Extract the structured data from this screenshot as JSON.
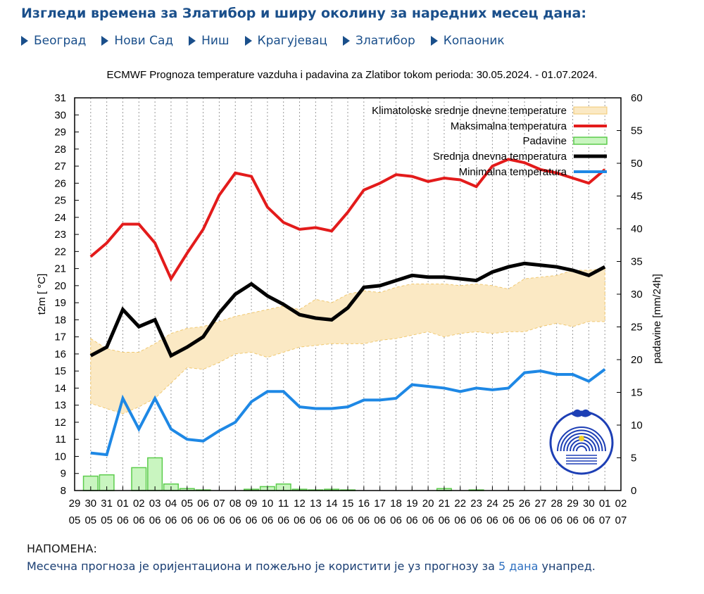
{
  "page": {
    "title": "Изгледи времена за Златибор и ширу околину за наредних месец дана:",
    "cities": [
      "Београд",
      "Нови Сад",
      "Ниш",
      "Крагујевац",
      "Златибор",
      "Копаоник"
    ],
    "note_heading": "НАПОМЕНА:",
    "note_text_before": "Месечна прогноза је оријентациона и пожељно је користити је уз прогнозу за ",
    "note_link": "5 дана",
    "note_text_after": " унапред."
  },
  "colors": {
    "header_blue": "#1a4f8b",
    "max_temp": "#e31b1b",
    "mean_temp": "#000000",
    "min_temp": "#1e88e5",
    "precip_fill": "#c9f5c0",
    "precip_stroke": "#5ccc4c",
    "clim_band": "#fbe9c4",
    "clim_band_edge": "#f0c870"
  },
  "chart_data": {
    "type": "line",
    "title": "ECMWF Prognoza temperature  vazduha i padavina za Zlatibor tokom perioda: 30.05.2024. - 01.07.2024.",
    "ylabel_left": "t2m [ °C]",
    "ylabel_right": "padavine [mm/24h]",
    "ylim_left": [
      8,
      31
    ],
    "ylim_right": [
      0,
      60
    ],
    "grid": "vertical dotted",
    "legend_position": "top-right",
    "x_ticks_day": [
      "29",
      "30",
      "31",
      "01",
      "02",
      "03",
      "04",
      "05",
      "06",
      "07",
      "08",
      "09",
      "10",
      "11",
      "12",
      "13",
      "14",
      "15",
      "16",
      "17",
      "18",
      "19",
      "20",
      "21",
      "22",
      "23",
      "24",
      "25",
      "26",
      "27",
      "28",
      "29",
      "30",
      "01",
      "02"
    ],
    "x_ticks_month": [
      "05",
      "05",
      "05",
      "06",
      "06",
      "06",
      "06",
      "06",
      "06",
      "06",
      "06",
      "06",
      "06",
      "06",
      "06",
      "06",
      "06",
      "06",
      "06",
      "06",
      "06",
      "06",
      "06",
      "06",
      "06",
      "06",
      "06",
      "06",
      "06",
      "06",
      "06",
      "06",
      "06",
      "07",
      "07"
    ],
    "legend": [
      "Klimatoloske srednje dnevne temperature",
      "Maksimalna temperatura",
      "Padavine",
      "Srednja dnevna temperatura",
      "Minimalna temperatura"
    ],
    "x": [
      "30.05",
      "31.05",
      "01.06",
      "02.06",
      "03.06",
      "04.06",
      "05.06",
      "06.06",
      "07.06",
      "08.06",
      "09.06",
      "10.06",
      "11.06",
      "12.06",
      "13.06",
      "14.06",
      "15.06",
      "16.06",
      "17.06",
      "18.06",
      "19.06",
      "20.06",
      "21.06",
      "22.06",
      "23.06",
      "24.06",
      "25.06",
      "26.06",
      "27.06",
      "28.06",
      "29.06",
      "30.06",
      "01.07"
    ],
    "series": [
      {
        "name": "Maksimalna temperatura",
        "values": [
          21.7,
          22.5,
          23.6,
          23.6,
          22.5,
          20.4,
          21.9,
          23.3,
          25.3,
          26.6,
          26.4,
          24.6,
          23.7,
          23.3,
          23.4,
          23.2,
          24.3,
          25.6,
          26.0,
          26.5,
          26.4,
          26.1,
          26.3,
          26.2,
          25.8,
          27.0,
          27.4,
          27.2,
          26.8,
          26.6,
          26.3,
          26.0,
          26.8
        ]
      },
      {
        "name": "Srednja dnevna temperatura",
        "values": [
          15.9,
          16.4,
          18.6,
          17.6,
          18.0,
          15.9,
          16.4,
          17.0,
          18.4,
          19.5,
          20.1,
          19.4,
          18.9,
          18.3,
          18.1,
          18.0,
          18.7,
          19.9,
          20.0,
          20.3,
          20.6,
          20.5,
          20.5,
          20.4,
          20.3,
          20.8,
          21.1,
          21.3,
          21.2,
          21.1,
          20.9,
          20.6,
          21.1
        ]
      },
      {
        "name": "Minimalna temperatura",
        "values": [
          10.2,
          10.1,
          13.4,
          11.6,
          13.4,
          11.6,
          11.0,
          10.9,
          11.5,
          12.0,
          13.2,
          13.8,
          13.8,
          12.9,
          12.8,
          12.8,
          12.9,
          13.3,
          13.3,
          13.4,
          14.2,
          14.1,
          14.0,
          13.8,
          14.0,
          13.9,
          14.0,
          14.9,
          15.0,
          14.8,
          14.8,
          14.4,
          15.1
        ]
      },
      {
        "name": "Padavine",
        "axis": "right",
        "values": [
          2.2,
          2.4,
          0,
          3.5,
          5.0,
          1.0,
          0.3,
          0.1,
          0,
          0,
          0.2,
          0.6,
          1.0,
          0.2,
          0.1,
          0.2,
          0.1,
          0,
          0,
          0,
          0,
          0,
          0.3,
          0,
          0.1,
          0,
          0,
          0,
          0,
          0,
          0,
          0,
          0
        ]
      }
    ],
    "climatology": {
      "upper": [
        16.9,
        16.3,
        16.1,
        16.1,
        16.6,
        17.2,
        17.5,
        17.6,
        17.9,
        18.2,
        18.4,
        18.6,
        18.8,
        18.6,
        19.2,
        19.0,
        19.5,
        19.7,
        19.6,
        19.9,
        20.1,
        20.1,
        20.1,
        20.0,
        20.1,
        20.0,
        19.8,
        20.4,
        20.5,
        20.6,
        20.9,
        20.9,
        21.0
      ],
      "lower": [
        13.1,
        12.8,
        12.5,
        12.9,
        13.4,
        14.3,
        15.2,
        15.1,
        15.5,
        16.0,
        16.1,
        15.8,
        16.1,
        16.4,
        16.5,
        16.6,
        16.6,
        16.6,
        16.8,
        16.9,
        17.1,
        17.3,
        17.0,
        17.2,
        17.3,
        17.2,
        17.3,
        17.3,
        17.6,
        17.8,
        17.6,
        17.9,
        17.9
      ]
    }
  }
}
